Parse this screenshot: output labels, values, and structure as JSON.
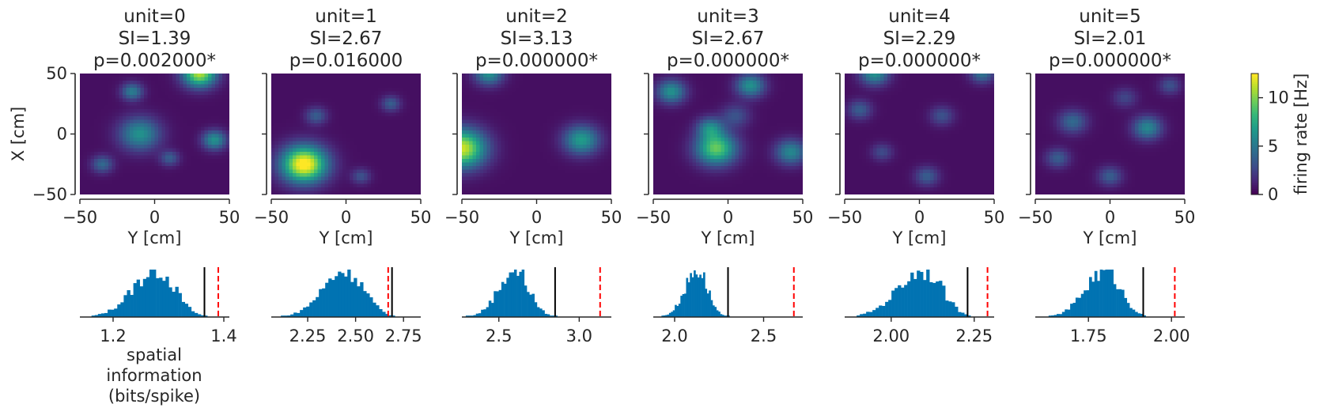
{
  "chart_data": {
    "type": "heatmap",
    "panels": [
      {
        "unit_title": "unit=0",
        "si_title": "SI=1.39",
        "p_title": "p=0.002000*",
        "fields": [
          [
            30,
            50,
            1.0,
            0.7
          ],
          [
            -10,
            0,
            0.55,
            0.85
          ],
          [
            40,
            -5,
            0.55,
            0.5
          ],
          [
            -35,
            -25,
            0.35,
            0.45
          ],
          [
            -15,
            35,
            0.45,
            0.45
          ],
          [
            10,
            -20,
            0.3,
            0.4
          ]
        ],
        "hist": {
          "xlim": [
            1.14,
            1.41
          ],
          "ticks": [
            1.2,
            1.4
          ],
          "tick_labels": [
            "1.2",
            "1.4"
          ],
          "mean": 1.28,
          "sd": 0.035,
          "skew": -0.4,
          "threshold": 1.365,
          "observed": 1.39
        }
      },
      {
        "unit_title": "unit=1",
        "si_title": "SI=2.67",
        "p_title": "p=0.016000",
        "fields": [
          [
            -28,
            -25,
            1.2,
            0.95
          ],
          [
            -20,
            15,
            0.3,
            0.45
          ],
          [
            30,
            25,
            0.3,
            0.4
          ],
          [
            10,
            -35,
            0.25,
            0.4
          ]
        ],
        "hist": {
          "xlim": [
            2.06,
            2.84
          ],
          "ticks": [
            2.25,
            2.5,
            2.75
          ],
          "tick_labels": [
            "2.25",
            "2.50",
            "2.75"
          ],
          "mean": 2.45,
          "sd": 0.1,
          "skew": -0.3,
          "threshold": 2.69,
          "observed": 2.67
        }
      },
      {
        "unit_title": "unit=2",
        "si_title": "SI=3.13",
        "p_title": "p=0.000000*",
        "fields": [
          [
            -50,
            -12,
            1.05,
            1.0
          ],
          [
            -32,
            50,
            0.55,
            0.6
          ],
          [
            30,
            -5,
            0.6,
            0.75
          ]
        ],
        "hist": {
          "xlim": [
            2.27,
            3.2
          ],
          "ticks": [
            2.5,
            3.0
          ],
          "tick_labels": [
            "2.5",
            "3.0"
          ],
          "mean": 2.6,
          "sd": 0.09,
          "skew": -0.2,
          "threshold": 2.85,
          "observed": 3.13
        }
      },
      {
        "unit_title": "unit=3",
        "si_title": "SI=2.67",
        "p_title": "p=0.000000*",
        "fields": [
          [
            -8,
            -12,
            0.85,
            0.85
          ],
          [
            -12,
            5,
            0.45,
            0.55
          ],
          [
            -38,
            35,
            0.55,
            0.6
          ],
          [
            15,
            40,
            0.55,
            0.6
          ],
          [
            42,
            -15,
            0.5,
            0.65
          ],
          [
            5,
            15,
            0.25,
            0.6
          ]
        ],
        "hist": {
          "xlim": [
            1.88,
            2.72
          ],
          "ticks": [
            2.0,
            2.5
          ],
          "tick_labels": [
            "2.0",
            "2.5"
          ],
          "mean": 2.13,
          "sd": 0.06,
          "skew": -0.3,
          "threshold": 2.3,
          "observed": 2.67
        }
      },
      {
        "unit_title": "unit=4",
        "si_title": "SI=2.29",
        "p_title": "p=0.000000*",
        "fields": [
          [
            -30,
            50,
            0.55,
            0.6
          ],
          [
            42,
            50,
            0.4,
            0.5
          ],
          [
            -40,
            20,
            0.3,
            0.5
          ],
          [
            15,
            15,
            0.25,
            0.5
          ],
          [
            5,
            -35,
            0.3,
            0.5
          ],
          [
            -25,
            -15,
            0.22,
            0.45
          ]
        ],
        "hist": {
          "xlim": [
            1.86,
            2.31
          ],
          "ticks": [
            2.0,
            2.25
          ],
          "tick_labels": [
            "2.00",
            "2.25"
          ],
          "mean": 2.1,
          "sd": 0.06,
          "skew": -0.5,
          "threshold": 2.23,
          "observed": 2.29
        }
      },
      {
        "unit_title": "unit=5",
        "si_title": "SI=2.01",
        "p_title": "p=0.000000*",
        "fields": [
          [
            25,
            5,
            0.5,
            0.6
          ],
          [
            -25,
            10,
            0.35,
            0.6
          ],
          [
            -35,
            -20,
            0.3,
            0.5
          ],
          [
            0,
            -35,
            0.3,
            0.5
          ],
          [
            40,
            40,
            0.25,
            0.45
          ],
          [
            10,
            30,
            0.2,
            0.5
          ]
        ],
        "hist": {
          "xlim": [
            1.59,
            2.04
          ],
          "ticks": [
            1.75,
            2.0
          ],
          "tick_labels": [
            "1.75",
            "2.00"
          ],
          "mean": 1.8,
          "sd": 0.05,
          "skew": -0.3,
          "threshold": 1.915,
          "observed": 2.01
        }
      }
    ],
    "map_axes": {
      "xlim": [
        -50,
        50
      ],
      "ylim": [
        -50,
        50
      ],
      "xticks": [
        -50,
        0,
        50
      ],
      "xtick_labels": [
        "−50",
        "0",
        "50"
      ],
      "yticks": [
        -50,
        0,
        50
      ],
      "ytick_labels": [
        "−50",
        "0",
        "50"
      ],
      "xlabel": "Y [cm]",
      "ylabel": "X [cm]"
    },
    "hist_xlabel": [
      "spatial",
      "information",
      "(bits/spike)"
    ],
    "colorbar": {
      "label": "firing rate [Hz]",
      "range": [
        0,
        12.5
      ],
      "ticks": [
        0,
        5,
        10
      ],
      "tick_labels": [
        "0",
        "5",
        "10"
      ],
      "colormap": "viridis"
    },
    "colors": {
      "hist_fill": "#0173b2",
      "threshold_line": "#000000",
      "observed_line": "#ff0000",
      "map_background": "#440154"
    }
  }
}
